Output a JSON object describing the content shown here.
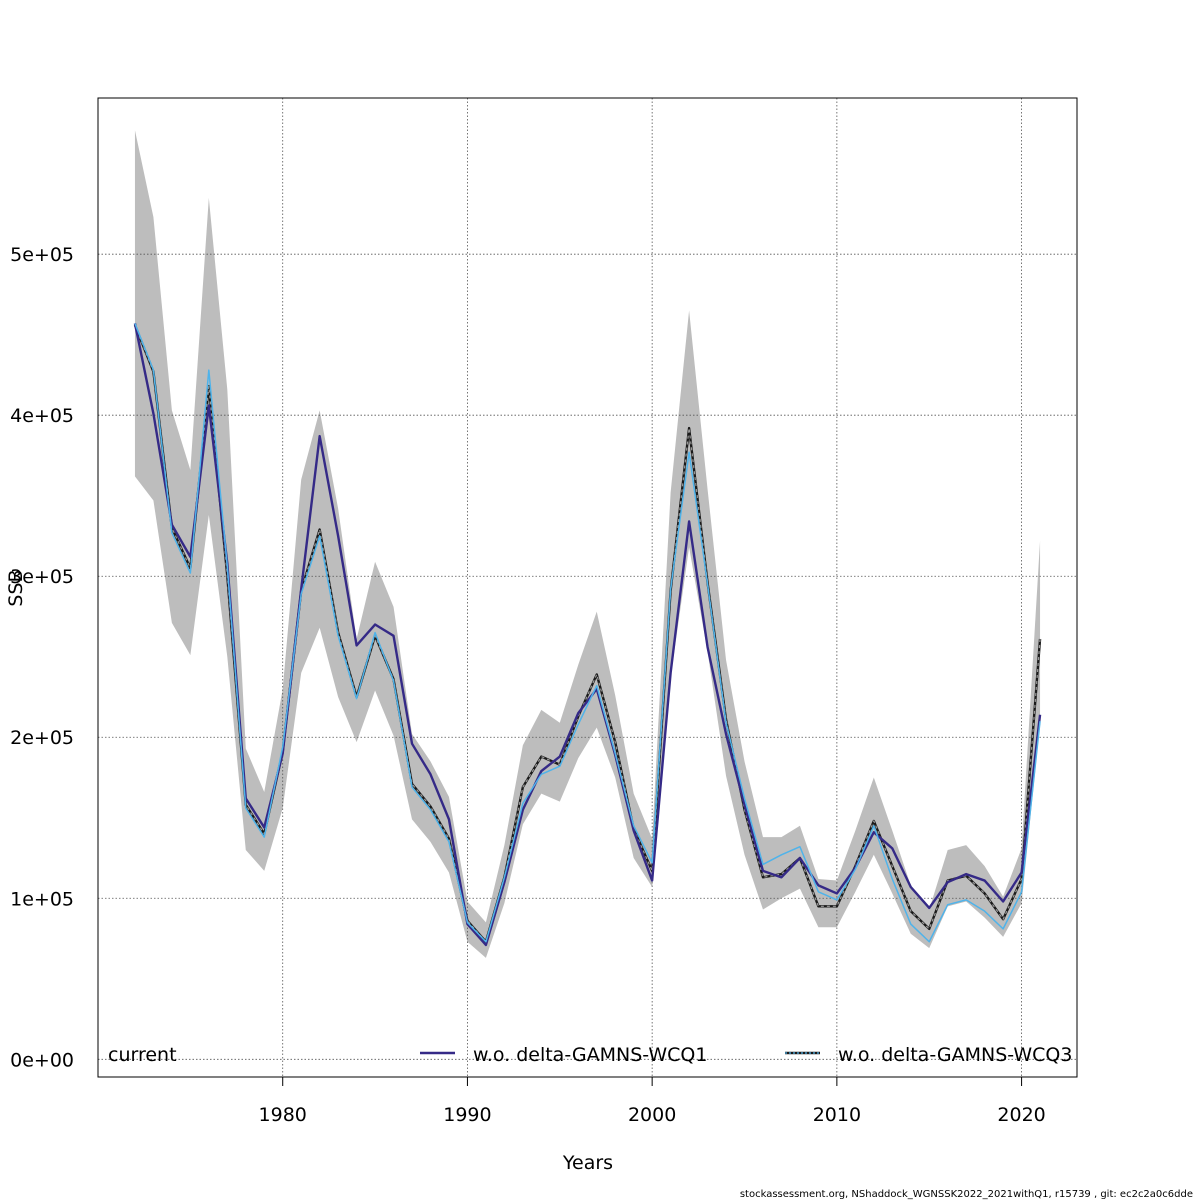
{
  "chart_data": {
    "type": "line",
    "xlabel": "Years",
    "ylabel": "SSB",
    "xlim": [
      1970,
      2023
    ],
    "ylim": [
      -11000,
      597000
    ],
    "x_ticks": [
      1980,
      1990,
      2000,
      2010,
      2020
    ],
    "x_tick_labels": [
      "1980",
      "1990",
      "2000",
      "2010",
      "2020"
    ],
    "y_ticks": [
      0,
      100000,
      200000,
      300000,
      400000,
      500000
    ],
    "y_tick_labels": [
      "0e+00",
      "1e+05",
      "2e+05",
      "3e+05",
      "4e+05",
      "5e+05"
    ],
    "grid": true,
    "legend_position": "bottom",
    "x": [
      1972,
      1973,
      1974,
      1975,
      1976,
      1977,
      1978,
      1979,
      1980,
      1981,
      1982,
      1983,
      1984,
      1985,
      1986,
      1987,
      1988,
      1989,
      1990,
      1991,
      1992,
      1993,
      1994,
      1995,
      1996,
      1997,
      1998,
      1999,
      2000,
      2001,
      2002,
      2003,
      2004,
      2005,
      2006,
      2007,
      2008,
      2009,
      2010,
      2011,
      2012,
      2013,
      2014,
      2015,
      2016,
      2017,
      2018,
      2019,
      2020,
      2021
    ],
    "band": {
      "upper": [
        577000,
        523000,
        403000,
        366000,
        535000,
        416000,
        193000,
        166000,
        230000,
        360000,
        403000,
        342000,
        261000,
        309000,
        281000,
        202000,
        185000,
        163000,
        98000,
        85000,
        133000,
        195000,
        217000,
        209000,
        245000,
        278000,
        226000,
        165000,
        137000,
        352000,
        465000,
        354000,
        248000,
        185000,
        138000,
        138000,
        145000,
        112000,
        111000,
        142000,
        175000,
        142000,
        108000,
        93000,
        130000,
        133000,
        120000,
        101000,
        131000,
        322000
      ],
      "lower": [
        362000,
        347000,
        271000,
        251000,
        338000,
        250000,
        130000,
        117000,
        156000,
        240000,
        268000,
        225000,
        197000,
        229000,
        201000,
        149000,
        135000,
        116000,
        73000,
        63000,
        97000,
        146000,
        165000,
        160000,
        187000,
        206000,
        175000,
        125000,
        107000,
        237000,
        318000,
        253000,
        176000,
        127000,
        93000,
        100000,
        106000,
        82000,
        82000,
        104000,
        127000,
        103000,
        78000,
        69000,
        95000,
        98000,
        88000,
        76000,
        97000,
        208000
      ]
    },
    "series": [
      {
        "name": "current",
        "color": "#1a1a1a",
        "values": [
          456000,
          427000,
          330000,
          305000,
          418000,
          300000,
          158000,
          140000,
          191000,
          291000,
          329000,
          265000,
          225000,
          263000,
          236000,
          171000,
          157000,
          137000,
          86000,
          73000,
          113000,
          169000,
          188000,
          183000,
          213000,
          239000,
          197000,
          143000,
          117000,
          291000,
          392000,
          296000,
          211000,
          155000,
          113000,
          115000,
          125000,
          95000,
          95000,
          120000,
          148000,
          120000,
          92000,
          81000,
          111000,
          114000,
          103000,
          87000,
          112000,
          261000
        ]
      },
      {
        "name": "w.o. delta-GAMNS-WCQ1",
        "color": "#352a87",
        "values": [
          457000,
          401000,
          332000,
          312000,
          406000,
          308000,
          162000,
          144000,
          190000,
          292000,
          387000,
          325000,
          257000,
          270000,
          263000,
          196000,
          177000,
          149000,
          84000,
          71000,
          110000,
          155000,
          179000,
          188000,
          215000,
          230000,
          189000,
          142000,
          111000,
          240000,
          334000,
          256000,
          202000,
          158000,
          117000,
          113000,
          125000,
          108000,
          103000,
          119000,
          141000,
          131000,
          107000,
          94000,
          110000,
          115000,
          111000,
          98000,
          116000,
          214000
        ]
      },
      {
        "name": "w.o. delta-GAMNS-WCQ3",
        "color": "#4fb3ea",
        "values": [
          457000,
          428000,
          327000,
          302000,
          428000,
          306000,
          156000,
          138000,
          194000,
          289000,
          325000,
          263000,
          224000,
          265000,
          235000,
          169000,
          155000,
          135000,
          85000,
          73000,
          113000,
          159000,
          177000,
          182000,
          208000,
          232000,
          190000,
          145000,
          122000,
          292000,
          377000,
          295000,
          209000,
          162000,
          121000,
          127000,
          132000,
          104000,
          99000,
          118000,
          145000,
          112000,
          84000,
          73000,
          96000,
          99000,
          92000,
          81000,
          104000,
          210000
        ]
      }
    ]
  },
  "footer": "stockassessment.org, NShaddock_WGNSSK2022_2021withQ1, r15739 , git: ec2c2a0c6dde"
}
